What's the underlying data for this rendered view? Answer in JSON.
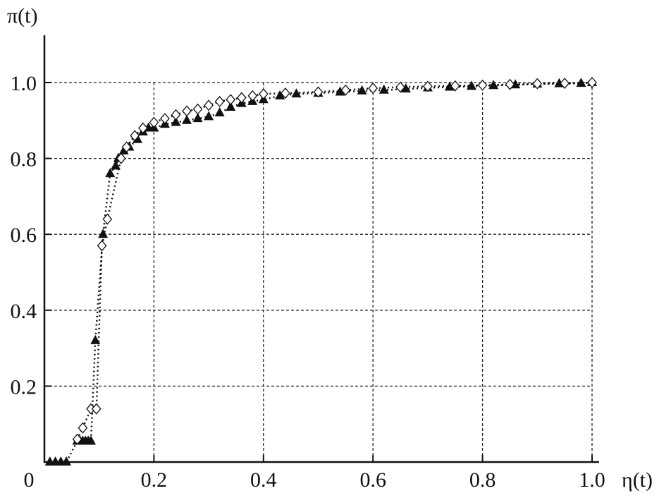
{
  "chart_data": {
    "type": "scatter",
    "title": "",
    "xlabel": "η(t)",
    "ylabel": "π(t)",
    "xlim": [
      0,
      1.0
    ],
    "ylim": [
      0,
      1.0
    ],
    "x_ticks": [
      "0",
      "0.2",
      "0.4",
      "0.6",
      "0.8",
      "1.0"
    ],
    "y_ticks": [
      "0.2",
      "0.4",
      "0.6",
      "0.8",
      "1.0"
    ],
    "grid": true,
    "colors": {
      "ink": "#111111"
    },
    "series": [
      {
        "marker": "filled-triangle",
        "line": "dotted",
        "points": [
          [
            0.01,
            0
          ],
          [
            0.02,
            0
          ],
          [
            0.03,
            0
          ],
          [
            0.04,
            0
          ],
          [
            0.06,
            0.055
          ],
          [
            0.065,
            0.055
          ],
          [
            0.07,
            0.055
          ],
          [
            0.075,
            0.055
          ],
          [
            0.08,
            0.055
          ],
          [
            0.085,
            0.055
          ],
          [
            0.093,
            0.32
          ],
          [
            0.107,
            0.6
          ],
          [
            0.12,
            0.76
          ],
          [
            0.13,
            0.78
          ],
          [
            0.135,
            0.8
          ],
          [
            0.145,
            0.82
          ],
          [
            0.155,
            0.83
          ],
          [
            0.17,
            0.85
          ],
          [
            0.18,
            0.87
          ],
          [
            0.19,
            0.88
          ],
          [
            0.2,
            0.88
          ],
          [
            0.22,
            0.89
          ],
          [
            0.24,
            0.895
          ],
          [
            0.26,
            0.9
          ],
          [
            0.28,
            0.905
          ],
          [
            0.3,
            0.91
          ],
          [
            0.32,
            0.92
          ],
          [
            0.34,
            0.935
          ],
          [
            0.36,
            0.945
          ],
          [
            0.38,
            0.95
          ],
          [
            0.4,
            0.955
          ],
          [
            0.43,
            0.965
          ],
          [
            0.46,
            0.97
          ],
          [
            0.5,
            0.972
          ],
          [
            0.54,
            0.975
          ],
          [
            0.58,
            0.978
          ],
          [
            0.62,
            0.98
          ],
          [
            0.66,
            0.983
          ],
          [
            0.7,
            0.986
          ],
          [
            0.74,
            0.988
          ],
          [
            0.78,
            0.99
          ],
          [
            0.82,
            0.992
          ],
          [
            0.86,
            0.994
          ],
          [
            0.9,
            0.996
          ],
          [
            0.94,
            0.997
          ],
          [
            0.98,
            0.998
          ],
          [
            1.0,
            1.0
          ]
        ]
      },
      {
        "marker": "open-diamond",
        "line": "dotted",
        "points": [
          [
            0.06,
            0.06
          ],
          [
            0.07,
            0.09
          ],
          [
            0.085,
            0.14
          ],
          [
            0.095,
            0.14
          ],
          [
            0.105,
            0.57
          ],
          [
            0.115,
            0.64
          ],
          [
            0.14,
            0.8
          ],
          [
            0.15,
            0.83
          ],
          [
            0.165,
            0.86
          ],
          [
            0.18,
            0.88
          ],
          [
            0.2,
            0.895
          ],
          [
            0.22,
            0.905
          ],
          [
            0.24,
            0.915
          ],
          [
            0.26,
            0.925
          ],
          [
            0.28,
            0.93
          ],
          [
            0.3,
            0.94
          ],
          [
            0.32,
            0.95
          ],
          [
            0.34,
            0.955
          ],
          [
            0.36,
            0.96
          ],
          [
            0.38,
            0.965
          ],
          [
            0.4,
            0.97
          ],
          [
            0.44,
            0.972
          ],
          [
            0.5,
            0.975
          ],
          [
            0.55,
            0.98
          ],
          [
            0.6,
            0.985
          ],
          [
            0.65,
            0.988
          ],
          [
            0.7,
            0.99
          ],
          [
            0.75,
            0.991
          ],
          [
            0.8,
            0.993
          ],
          [
            0.85,
            0.995
          ],
          [
            0.9,
            0.997
          ],
          [
            0.95,
            0.998
          ],
          [
            1.0,
            1.0
          ]
        ]
      }
    ]
  }
}
